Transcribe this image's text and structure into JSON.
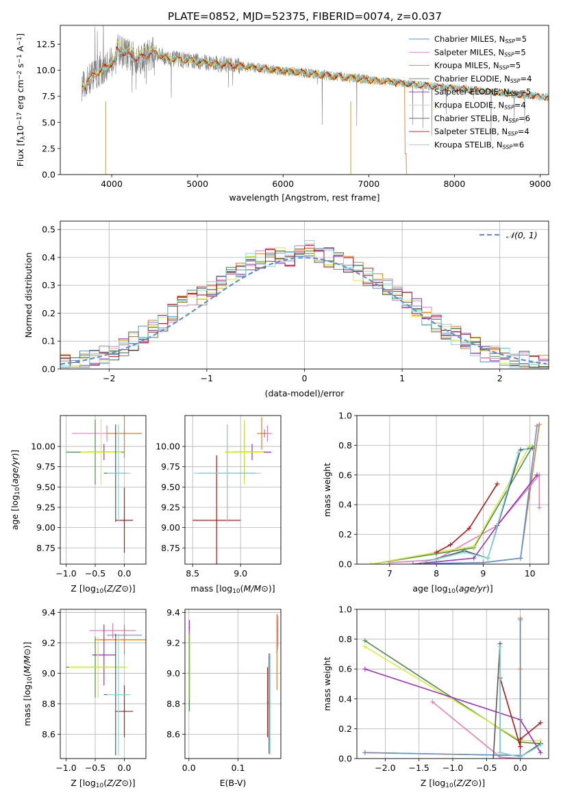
{
  "figure_title": "PLATE=0852, MJD=52375, FIBERID=0074, z=0.037",
  "colors": {
    "Chabrier MILES": "#5b8fd8",
    "Salpeter MILES": "#e67eb5",
    "Kroupa MILES": "#e07b2c",
    "Chabrier ELODIE": "#4f8a4f",
    "Salpeter ELODIE": "#9a2fb5",
    "Kroupa ELODIE": "#d8ea3a",
    "Chabrier STELIB": "#555555",
    "Salpeter STELIB": "#b01515",
    "Kroupa STELIB": "#7fdcdc"
  },
  "chart_data": [
    {
      "id": "spectrum",
      "type": "line",
      "xlabel": "wavelength [Angstrom, rest frame]",
      "ylabel": "Flux [f_λ10^-17 erg cm^-2 s^-1 A^-1]",
      "xlim": [
        3400,
        9100
      ],
      "ylim": [
        0,
        14.3
      ],
      "xticks": [
        4000,
        5000,
        6000,
        7000,
        8000,
        9000
      ],
      "yticks": [
        0.0,
        2.5,
        5.0,
        7.5,
        10.0,
        12.5
      ],
      "grid": false,
      "legend_position": "top-right",
      "data_range": [
        3650,
        9100
      ],
      "legend": [
        {
          "base": "Chabrier MILES, N",
          "sub": "SSP",
          "tail": "=5"
        },
        {
          "base": "Salpeter MILES, N",
          "sub": "SSP",
          "tail": "=5"
        },
        {
          "base": "Kroupa MILES, N",
          "sub": "SSP",
          "tail": "=5"
        },
        {
          "base": "Chabrier ELODIE, N",
          "sub": "SSP",
          "tail": "=4"
        },
        {
          "base": "Salpeter ELODIE, N",
          "sub": "SSP",
          "tail": "=5"
        },
        {
          "base": "Kroupa ELODIE, N",
          "sub": "SSP",
          "tail": "=4"
        },
        {
          "base": "Chabrier STELIB, N",
          "sub": "SSP",
          "tail": "=6"
        },
        {
          "base": "Salpeter STELIB, N",
          "sub": "SSP",
          "tail": "=4"
        },
        {
          "base": "Kroupa STELIB, N",
          "sub": "SSP",
          "tail": "=6"
        }
      ]
    },
    {
      "id": "residuals",
      "type": "bar",
      "xlabel": "(data-model)/error",
      "ylabel": "Normed distribution",
      "xlim": [
        -2.5,
        2.5
      ],
      "ylim": [
        0,
        0.53
      ],
      "xticks": [
        -2,
        -1,
        0,
        1,
        2
      ],
      "yticks": [
        0.0,
        0.1,
        0.2,
        0.3,
        0.4,
        0.5
      ],
      "grid": true,
      "legend_position": "top-right",
      "legend_label": "𝒩(0, 1)",
      "bin_start": -2.5,
      "bin_width": 0.1,
      "hist": [
        0.02,
        0.02,
        0.03,
        0.04,
        0.05,
        0.06,
        0.08,
        0.1,
        0.12,
        0.14,
        0.17,
        0.2,
        0.23,
        0.25,
        0.26,
        0.29,
        0.31,
        0.34,
        0.36,
        0.38,
        0.39,
        0.4,
        0.41,
        0.4,
        0.42,
        0.44,
        0.41,
        0.4,
        0.39,
        0.37,
        0.35,
        0.33,
        0.31,
        0.3,
        0.28,
        0.25,
        0.22,
        0.19,
        0.16,
        0.14,
        0.12,
        0.1,
        0.08,
        0.06,
        0.05,
        0.04,
        0.03,
        0.03,
        0.02,
        0.02
      ]
    },
    {
      "id": "age_vs_Z",
      "type": "scatter",
      "xlabel": "Z [log10(Z/Z⊙)]",
      "ylabel": "age [log10(age/yr)]",
      "xlim": [
        -1.1,
        0.37
      ],
      "ylim": [
        8.55,
        10.38
      ],
      "xticks": [
        -1.0,
        -0.5,
        0.0
      ],
      "yticks": [
        8.75,
        9.0,
        9.25,
        9.5,
        9.75,
        10.0
      ],
      "grid": true,
      "points": [
        {
          "model": "Chabrier MILES",
          "x": 0.0,
          "y": 10.16,
          "xerr": 0.3,
          "yerr": 0.05
        },
        {
          "model": "Salpeter MILES",
          "x": -0.3,
          "y": 10.16,
          "xerr": 0.6,
          "yerr": 0.1
        },
        {
          "model": "Kroupa MILES",
          "x": 0.0,
          "y": 10.16,
          "xerr": 0.3,
          "yerr": 0.3
        },
        {
          "model": "Chabrier ELODIE",
          "x": -0.5,
          "y": 9.93,
          "xerr": 0.5,
          "yerr": 0.4
        },
        {
          "model": "Salpeter ELODIE",
          "x": -0.35,
          "y": 9.93,
          "xerr": 0.3,
          "yerr": 0.1
        },
        {
          "model": "Kroupa ELODIE",
          "x": -0.4,
          "y": 9.93,
          "xerr": 0.35,
          "yerr": 0.4
        },
        {
          "model": "Chabrier STELIB",
          "x": -0.15,
          "y": 9.67,
          "xerr": 0.2,
          "yerr": 0.6
        },
        {
          "model": "Salpeter STELIB",
          "x": 0.0,
          "y": 9.09,
          "xerr": 0.15,
          "yerr": 0.4
        },
        {
          "model": "Kroupa STELIB",
          "x": -0.1,
          "y": 9.67,
          "xerr": 0.2,
          "yerr": 0.6
        }
      ]
    },
    {
      "id": "age_vs_mass",
      "type": "scatter",
      "xlabel": "mass [log10(M/M⊙)]",
      "ylabel": "",
      "xlim": [
        8.42,
        9.42
      ],
      "ylim": [
        8.55,
        10.38
      ],
      "xticks": [
        8.5,
        9.0
      ],
      "yticks": [
        8.75,
        9.0,
        9.25,
        9.5,
        9.75,
        10.0
      ],
      "grid": true,
      "points": [
        {
          "model": "Chabrier MILES",
          "x": 9.25,
          "y": 10.16,
          "xerr": 0.05,
          "yerr": 0.05
        },
        {
          "model": "Salpeter MILES",
          "x": 9.28,
          "y": 10.16,
          "xerr": 0.05,
          "yerr": 0.1
        },
        {
          "model": "Kroupa MILES",
          "x": 9.22,
          "y": 10.16,
          "xerr": 0.05,
          "yerr": 0.2
        },
        {
          "model": "Chabrier ELODIE",
          "x": 9.04,
          "y": 9.93,
          "xerr": 0.2,
          "yerr": 0.35
        },
        {
          "model": "Salpeter ELODIE",
          "x": 9.12,
          "y": 9.93,
          "xerr": 0.2,
          "yerr": 0.1
        },
        {
          "model": "Kroupa ELODIE",
          "x": 9.04,
          "y": 9.93,
          "xerr": 0.2,
          "yerr": 0.4
        },
        {
          "model": "Chabrier STELIB",
          "x": 8.86,
          "y": 9.67,
          "xerr": 0.3,
          "yerr": 0.6
        },
        {
          "model": "Salpeter STELIB",
          "x": 8.75,
          "y": 9.09,
          "xerr": 0.25,
          "yerr": 0.8
        },
        {
          "model": "Kroupa STELIB",
          "x": 8.86,
          "y": 9.67,
          "xerr": 0.35,
          "yerr": 0.6
        }
      ]
    },
    {
      "id": "weight_vs_age",
      "type": "line",
      "xlabel": "age [log10(age/yr)]",
      "ylabel": "mass weight",
      "xlim": [
        6.3,
        10.4
      ],
      "ylim": [
        0,
        1.0
      ],
      "xticks": [
        7,
        8,
        9,
        10
      ],
      "yticks": [
        0.0,
        0.2,
        0.4,
        0.6,
        0.8,
        1.0
      ],
      "grid": true,
      "series": [
        {
          "model": "Kroupa MILES",
          "points": [
            [
              7.7,
              0.0
            ],
            [
              8.0,
              0.005
            ],
            [
              9.0,
              0.01
            ],
            [
              9.8,
              0.04
            ],
            [
              10.2,
              0.94
            ]
          ]
        },
        {
          "model": "Chabrier MILES",
          "points": [
            [
              7.7,
              0.0
            ],
            [
              8.0,
              0.005
            ],
            [
              9.0,
              0.01
            ],
            [
              9.8,
              0.04
            ],
            [
              10.15,
              0.93
            ]
          ]
        },
        {
          "model": "Salpeter MILES",
          "points": [
            [
              7.0,
              0.01
            ],
            [
              8.0,
              0.03
            ],
            [
              9.3,
              0.26
            ],
            [
              10.2,
              0.6
            ],
            [
              10.2,
              0.38
            ]
          ]
        },
        {
          "model": "Salpeter ELODIE",
          "points": [
            [
              7.5,
              0.0
            ],
            [
              8.8,
              0.04
            ],
            [
              9.3,
              0.26
            ],
            [
              10.15,
              0.6
            ]
          ]
        },
        {
          "model": "Chabrier ELODIE",
          "points": [
            [
              6.6,
              0.0
            ],
            [
              8.0,
              0.07
            ],
            [
              8.8,
              0.11
            ],
            [
              10.05,
              0.79
            ]
          ]
        },
        {
          "model": "Kroupa ELODIE",
          "points": [
            [
              6.6,
              0.0
            ],
            [
              8.0,
              0.08
            ],
            [
              8.8,
              0.12
            ],
            [
              10.0,
              0.8
            ]
          ]
        },
        {
          "model": "Chabrier STELIB",
          "points": [
            [
              7.7,
              0.01
            ],
            [
              8.6,
              0.09
            ],
            [
              9.1,
              0.04
            ],
            [
              9.8,
              0.77
            ],
            [
              10.05,
              0.78
            ]
          ]
        },
        {
          "model": "Kroupa STELIB",
          "points": [
            [
              7.7,
              0.01
            ],
            [
              8.6,
              0.08
            ],
            [
              9.1,
              0.04
            ],
            [
              9.75,
              0.75
            ],
            [
              10.0,
              0.79
            ]
          ]
        },
        {
          "model": "Salpeter STELIB",
          "points": [
            [
              8.0,
              0.08
            ],
            [
              8.3,
              0.13
            ],
            [
              8.7,
              0.24
            ],
            [
              9.3,
              0.54
            ]
          ]
        }
      ]
    },
    {
      "id": "mass_vs_Z",
      "type": "scatter",
      "xlabel": "Z [log10(Z/Z⊙)]",
      "ylabel": "mass [log10(M/M⊙)]",
      "xlim": [
        -1.1,
        0.37
      ],
      "ylim": [
        8.44,
        9.42
      ],
      "xticks": [
        -1.0,
        -0.5,
        0.0
      ],
      "yticks": [
        8.6,
        8.8,
        9.0,
        9.2,
        9.4
      ],
      "grid": true,
      "points": [
        {
          "model": "Chabrier MILES",
          "x": 0.0,
          "y": 9.25,
          "xerr": 0.3,
          "yerr": 0.05
        },
        {
          "model": "Salpeter MILES",
          "x": -0.2,
          "y": 9.28,
          "xerr": 0.4,
          "yerr": 0.05
        },
        {
          "model": "Kroupa MILES",
          "x": 0.0,
          "y": 9.22,
          "xerr": 0.5,
          "yerr": 0.1
        },
        {
          "model": "Chabrier ELODIE",
          "x": -0.5,
          "y": 9.04,
          "xerr": 0.5,
          "yerr": 0.2
        },
        {
          "model": "Salpeter ELODIE",
          "x": -0.35,
          "y": 9.12,
          "xerr": 0.2,
          "yerr": 0.2
        },
        {
          "model": "Kroupa ELODIE",
          "x": -0.45,
          "y": 9.04,
          "xerr": 0.5,
          "yerr": 0.2
        },
        {
          "model": "Chabrier STELIB",
          "x": -0.15,
          "y": 8.86,
          "xerr": 0.2,
          "yerr": 0.4
        },
        {
          "model": "Salpeter STELIB",
          "x": 0.0,
          "y": 8.75,
          "xerr": 0.15,
          "yerr": 0.17
        },
        {
          "model": "Kroupa STELIB",
          "x": -0.1,
          "y": 8.86,
          "xerr": 0.2,
          "yerr": 0.4
        }
      ]
    },
    {
      "id": "mass_vs_ebv",
      "type": "scatter",
      "xlabel": "E(B-V)",
      "ylabel": "",
      "xlim": [
        -0.008,
        0.187
      ],
      "ylim": [
        8.44,
        9.42
      ],
      "xticks": [
        0.0,
        0.1
      ],
      "yticks": [
        8.6,
        8.8,
        9.0,
        9.2,
        9.4
      ],
      "grid": true,
      "points": [
        {
          "model": "Chabrier MILES",
          "x": 0.18,
          "y": 9.25,
          "xerr": 0.0,
          "yerr": 0.1
        },
        {
          "model": "Salpeter MILES",
          "x": 0.181,
          "y": 9.28,
          "xerr": 0.0,
          "yerr": 0.1
        },
        {
          "model": "Kroupa MILES",
          "x": 0.179,
          "y": 9.14,
          "xerr": 0.0,
          "yerr": 0.25
        },
        {
          "model": "Chabrier ELODIE",
          "x": 0.001,
          "y": 9.0,
          "xerr": 0.0,
          "yerr": 0.25
        },
        {
          "model": "Salpeter ELODIE",
          "x": 0.001,
          "y": 9.3,
          "xerr": 0.0,
          "yerr": 0.05
        },
        {
          "model": "Kroupa ELODIE",
          "x": 0.002,
          "y": 9.05,
          "xerr": 0.0,
          "yerr": 0.22
        },
        {
          "model": "Chabrier STELIB",
          "x": 0.163,
          "y": 8.8,
          "xerr": 0.0,
          "yerr": 0.33
        },
        {
          "model": "Salpeter STELIB",
          "x": 0.16,
          "y": 8.81,
          "xerr": 0.0,
          "yerr": 0.23
        },
        {
          "model": "Kroupa STELIB",
          "x": 0.165,
          "y": 8.8,
          "xerr": 0.0,
          "yerr": 0.33
        }
      ]
    },
    {
      "id": "weight_vs_Z",
      "type": "line",
      "xlabel": "Z [log10(Z/Z⊙)]",
      "ylabel": "mass weight",
      "xlim": [
        -2.42,
        0.42
      ],
      "ylim": [
        0,
        1.0
      ],
      "xticks": [
        -2.0,
        -1.5,
        -1.0,
        -0.5,
        0.0
      ],
      "yticks": [
        0.0,
        0.2,
        0.4,
        0.6,
        0.8,
        1.0
      ],
      "grid": true,
      "series": [
        {
          "model": "Chabrier ELODIE",
          "points": [
            [
              -2.3,
              0.79
            ],
            [
              0.0,
              0.11
            ],
            [
              0.3,
              0.1
            ]
          ]
        },
        {
          "model": "Kroupa ELODIE",
          "points": [
            [
              -2.3,
              0.75
            ],
            [
              0.0,
              0.12
            ],
            [
              0.3,
              0.12
            ]
          ]
        },
        {
          "model": "Salpeter ELODIE",
          "points": [
            [
              -2.3,
              0.6
            ],
            [
              0.0,
              0.26
            ],
            [
              0.3,
              0.04
            ]
          ]
        },
        {
          "model": "Salpeter MILES",
          "points": [
            [
              -1.3,
              0.38
            ],
            [
              -0.3,
              0.01
            ],
            [
              0.0,
              0.0
            ]
          ]
        },
        {
          "model": "Kroupa MILES",
          "points": [
            [
              -2.3,
              0.04
            ],
            [
              0.0,
              0.02
            ],
            [
              0.0,
              0.94
            ],
            [
              0.0,
              0.6
            ]
          ]
        },
        {
          "model": "Chabrier MILES",
          "points": [
            [
              -2.3,
              0.04
            ],
            [
              0.0,
              0.02
            ],
            [
              0.0,
              0.93
            ]
          ]
        },
        {
          "model": "Salpeter STELIB",
          "points": [
            [
              -0.3,
              0.54
            ],
            [
              0.0,
              0.08
            ],
            [
              0.0,
              0.13
            ],
            [
              0.3,
              0.24
            ]
          ]
        },
        {
          "model": "Chabrier STELIB",
          "points": [
            [
              -0.4,
              0.0
            ],
            [
              -0.3,
              0.77
            ],
            [
              -0.3,
              0.04
            ],
            [
              0.0,
              0.01
            ],
            [
              0.3,
              0.1
            ]
          ]
        },
        {
          "model": "Kroupa STELIB",
          "points": [
            [
              -0.3,
              0.75
            ],
            [
              -0.3,
              0.04
            ],
            [
              0.0,
              0.01
            ],
            [
              0.3,
              0.09
            ]
          ]
        }
      ]
    }
  ]
}
